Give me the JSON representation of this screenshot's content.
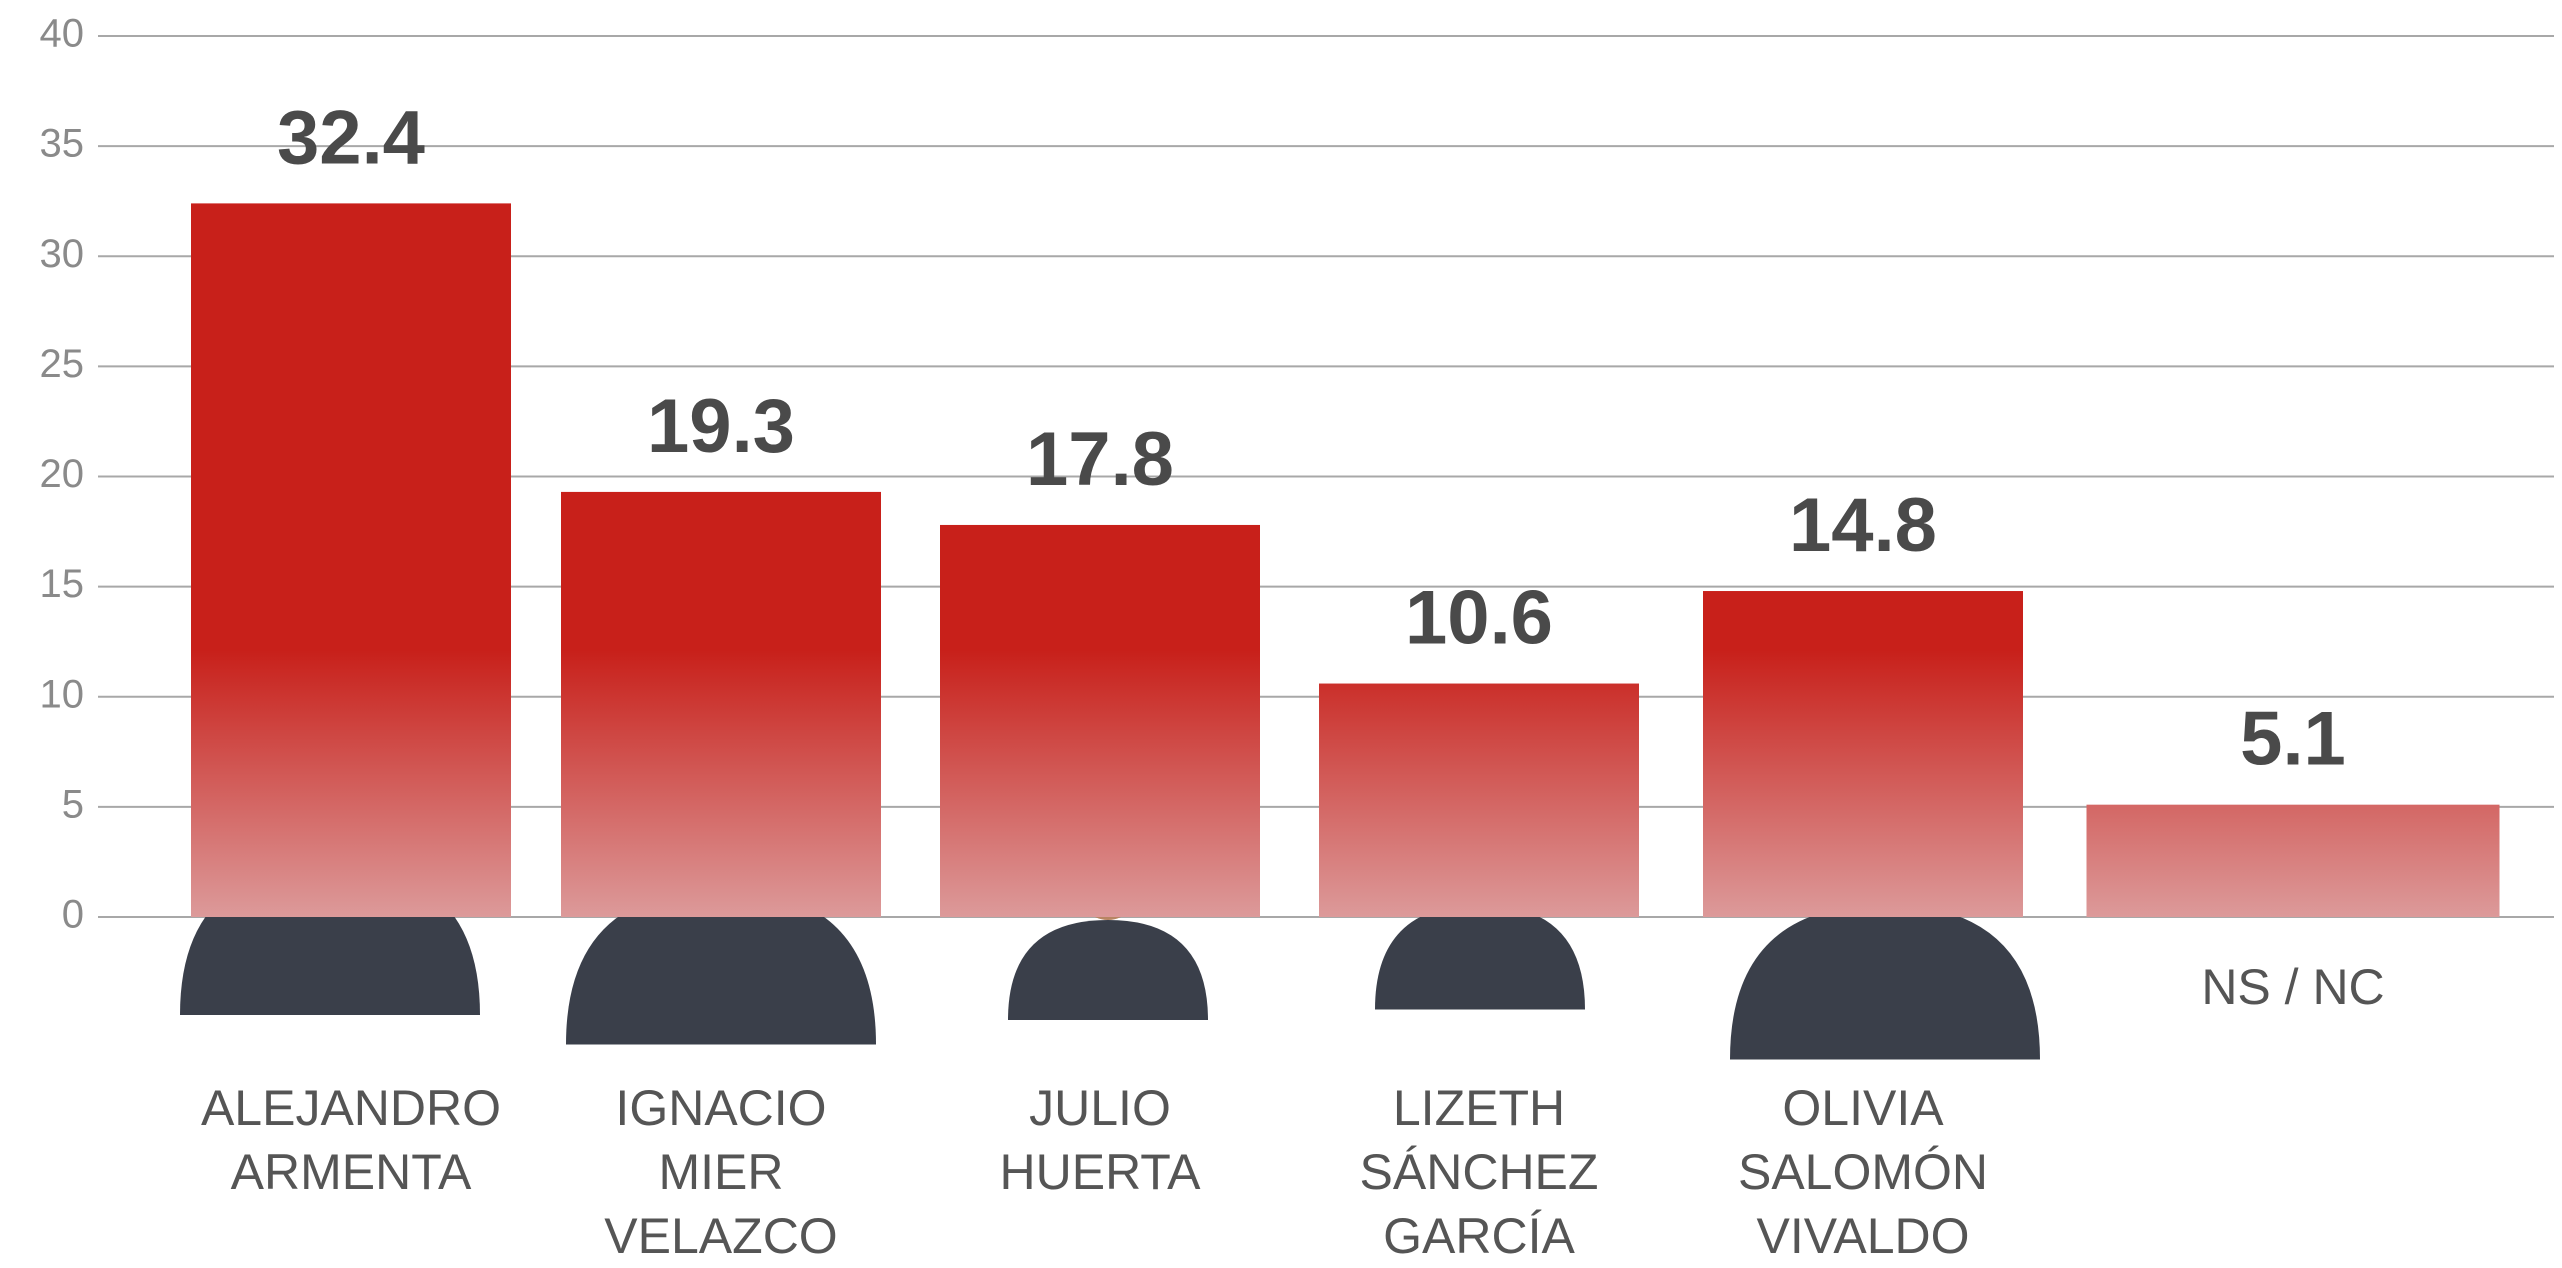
{
  "chart_data": {
    "type": "bar",
    "categories": [
      "ALEJANDRO\nARMENTA",
      "IGNACIO\nMIER\nVELAZCO",
      "JULIO\nHUERTA",
      "LIZETH\nSÁNCHEZ\nGARCÍA",
      "OLIVIA\nSALOMÓN\nVIVALDO",
      "NS / NC"
    ],
    "values": [
      32.4,
      19.3,
      17.8,
      10.6,
      14.8,
      5.1
    ],
    "color": "#c8201a",
    "ylim": [
      0,
      40
    ],
    "yticks": [
      0,
      5,
      10,
      15,
      20,
      25,
      30,
      35,
      40
    ],
    "grid": true
  }
}
